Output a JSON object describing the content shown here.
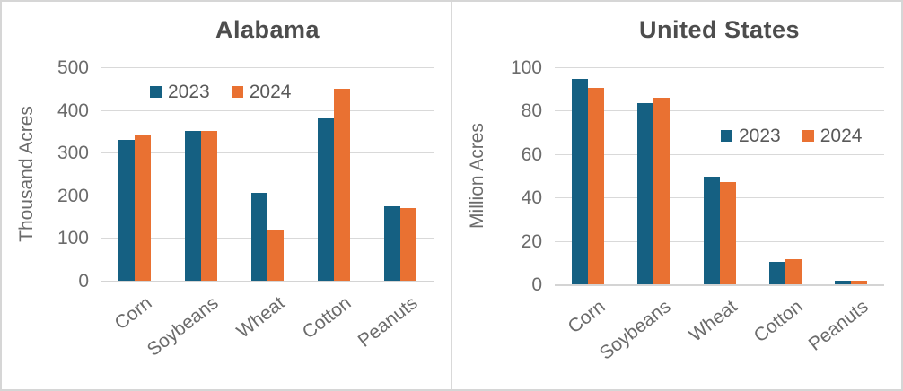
{
  "figure": {
    "background": "#ffffff",
    "border_color": "#d6d6d6",
    "divider_color": "#d9d9d9"
  },
  "colors": {
    "series_2023": "#156082",
    "series_2024": "#E97132",
    "title_text": "#4d4d4d",
    "axis_text": "#6b6b6b",
    "legend_text": "#595959",
    "gridline": "#d9d9d9"
  },
  "chart_data": [
    {
      "type": "bar",
      "title": "Alabama",
      "ylabel": "Thousand Acres",
      "xlabel": "",
      "categories": [
        "Corn",
        "Soybeans",
        "Wheat",
        "Cotton",
        "Peanuts"
      ],
      "series": [
        {
          "name": "2023",
          "color": "#156082",
          "values": [
            330,
            350,
            205,
            380,
            175
          ]
        },
        {
          "name": "2024",
          "color": "#E97132",
          "values": [
            340,
            350,
            120,
            450,
            170
          ]
        }
      ],
      "ylim": [
        0,
        500
      ],
      "yticks": [
        0,
        100,
        200,
        300,
        400,
        500
      ],
      "grid": true,
      "legend_position": "top-center-inside"
    },
    {
      "type": "bar",
      "title": "United States",
      "ylabel": "Million Acres",
      "xlabel": "",
      "categories": [
        "Corn",
        "Soybeans",
        "Wheat",
        "Cotton",
        "Peanuts"
      ],
      "series": [
        {
          "name": "2023",
          "color": "#156082",
          "values": [
            94.6,
            83.6,
            49.6,
            10.2,
            1.6
          ]
        },
        {
          "name": "2024",
          "color": "#E97132",
          "values": [
            90.7,
            86.1,
            47.2,
            11.7,
            1.8
          ]
        }
      ],
      "ylim": [
        0,
        100
      ],
      "yticks": [
        0,
        20,
        40,
        60,
        80,
        100
      ],
      "grid": true,
      "legend_position": "middle-right-inside"
    }
  ]
}
